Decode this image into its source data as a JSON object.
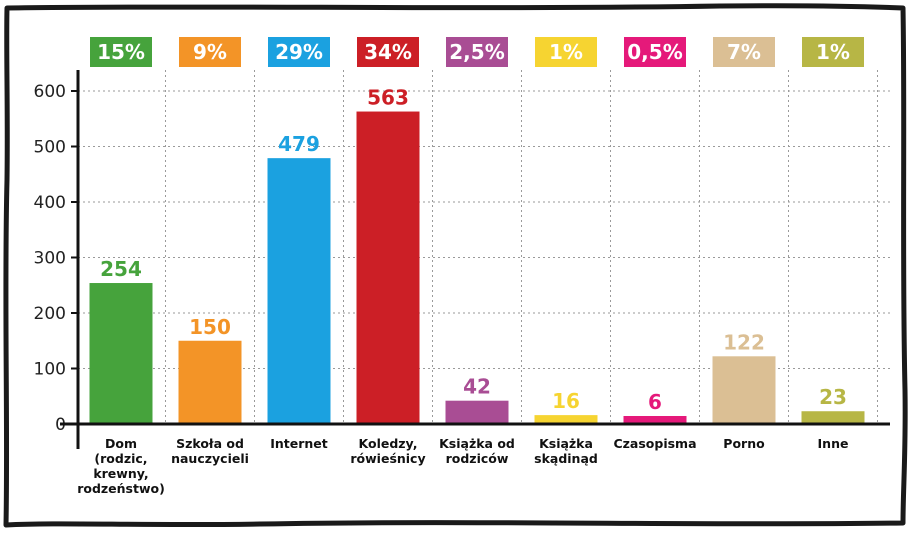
{
  "chart_data": {
    "type": "bar",
    "categories": [
      [
        "Dom",
        "(rodzic,",
        "krewny,",
        "rodzeństwo)"
      ],
      [
        "Szkoła od",
        "nauczycieli"
      ],
      [
        "Internet"
      ],
      [
        "Koledzy,",
        "rówieśnicy"
      ],
      [
        "Książka od",
        "rodziców"
      ],
      [
        "Książka",
        "skądinąd"
      ],
      [
        "Czasopisma"
      ],
      [
        "Porno"
      ],
      [
        "Inne"
      ]
    ],
    "values": [
      254,
      150,
      479,
      563,
      42,
      16,
      6,
      122,
      23
    ],
    "value_labels": [
      "254",
      "150",
      "479",
      "563",
      "42",
      "16",
      "6",
      "122",
      "23"
    ],
    "percent_labels": [
      "15%",
      "9%",
      "29%",
      "34%",
      "2,5%",
      "1%",
      "0,5%",
      "7%",
      "1%"
    ],
    "colors": [
      "#46a33c",
      "#f39427",
      "#1ba1e0",
      "#cc1f26",
      "#a94d94",
      "#f6d431",
      "#e5197a",
      "#dbbf94",
      "#b7b645"
    ],
    "y_ticks": [
      "0",
      "100",
      "200",
      "300",
      "400",
      "500",
      "600"
    ],
    "ylim": [
      0,
      600
    ],
    "grid": true,
    "legend": "none"
  }
}
